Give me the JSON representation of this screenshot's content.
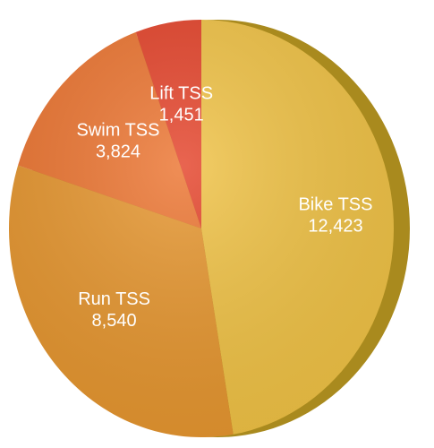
{
  "chart_data": {
    "type": "pie",
    "categories": [
      "Bike TSS",
      "Run TSS",
      "Swim TSS",
      "Lift TSS"
    ],
    "values": [
      12423,
      8540,
      3824,
      1451
    ],
    "value_labels": [
      "12,423",
      "8,540",
      "3,824",
      "1,451"
    ],
    "colors": [
      "#f0c245",
      "#e6962f",
      "#ec7531",
      "#e4432a"
    ]
  }
}
